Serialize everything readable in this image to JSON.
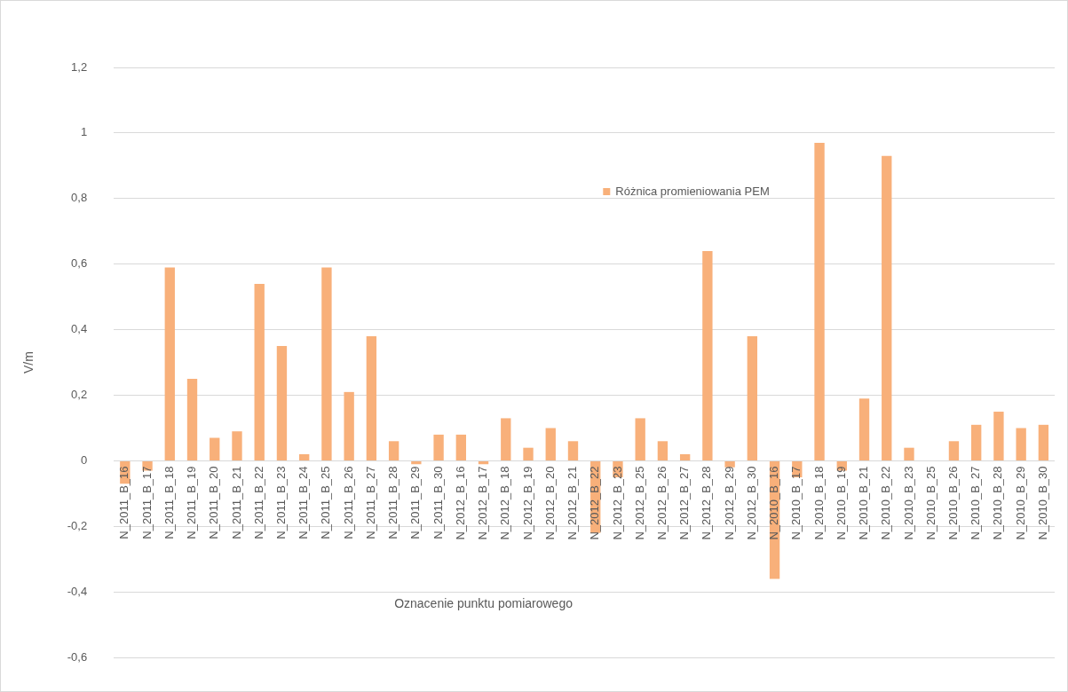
{
  "chart_data": {
    "type": "bar",
    "xlabel": "Oznacenie punktu pomiarowego",
    "ylabel": "V/m",
    "categories": [
      "N_2011_B_16",
      "N_2011_B_17",
      "N_2011_B_18",
      "N_2011_B_19",
      "N_2011_B_20",
      "N_2011_B_21",
      "N_2011_B_22",
      "N_2011_B_23",
      "N_2011_B_24",
      "N_2011_B_25",
      "N_2011_B_26",
      "N_2011_B_27",
      "N_2011_B_28",
      "N_2011_B_29",
      "N_2011_B_30",
      "N_2012_B_16",
      "N_2012_B_17",
      "N_2012_B_18",
      "N_2012_B_19",
      "N_2012_B_20",
      "N_2012_B_21",
      "N_2012_B_22",
      "N_2012_B_23",
      "N_2012_B_25",
      "N_2012_B_26",
      "N_2012_B_27",
      "N_2012_B_28",
      "N_2012_B_29",
      "N_2012_B_30",
      "N_2010_B_16",
      "N_2010_B_17",
      "N_2010_B_18",
      "N_2010_B_19",
      "N_2010_B_21",
      "N_2010_B_22",
      "N_2010_B_23",
      "N_2010_B_25",
      "N_2010_B_26",
      "N_2010_B_27",
      "N_2010_B_28",
      "N_2010_B_29",
      "N_2010_B_30"
    ],
    "series": [
      {
        "name": "Różnica promieniowania PEM",
        "color": "#f8b07a",
        "values": [
          -0.07,
          -0.03,
          0.59,
          0.25,
          0.07,
          0.09,
          0.54,
          0.35,
          0.02,
          0.59,
          0.21,
          0.38,
          0.06,
          -0.01,
          0.08,
          0.08,
          -0.01,
          0.13,
          0.04,
          0.1,
          0.06,
          -0.22,
          -0.05,
          0.13,
          0.06,
          0.02,
          0.64,
          -0.02,
          0.38,
          -0.36,
          -0.05,
          0.97,
          -0.03,
          0.19,
          0.93,
          0.04,
          0,
          0.06,
          0.11,
          0.15,
          0.1,
          0.11
        ]
      }
    ],
    "ylim": [
      -0.6,
      1.2
    ],
    "yticks": [
      {
        "value": -0.6,
        "label": "-0,6"
      },
      {
        "value": -0.4,
        "label": "-0,4"
      },
      {
        "value": -0.2,
        "label": "-0,2"
      },
      0,
      {
        "value": 0.2,
        "label": "0,2"
      },
      {
        "value": 0.4,
        "label": "0,4"
      },
      {
        "value": 0.6,
        "label": "0,6"
      },
      {
        "value": 0.8,
        "label": "0,8"
      },
      1,
      {
        "value": 1.2,
        "label": "1,2"
      }
    ],
    "grid": "y",
    "legend": "top"
  }
}
